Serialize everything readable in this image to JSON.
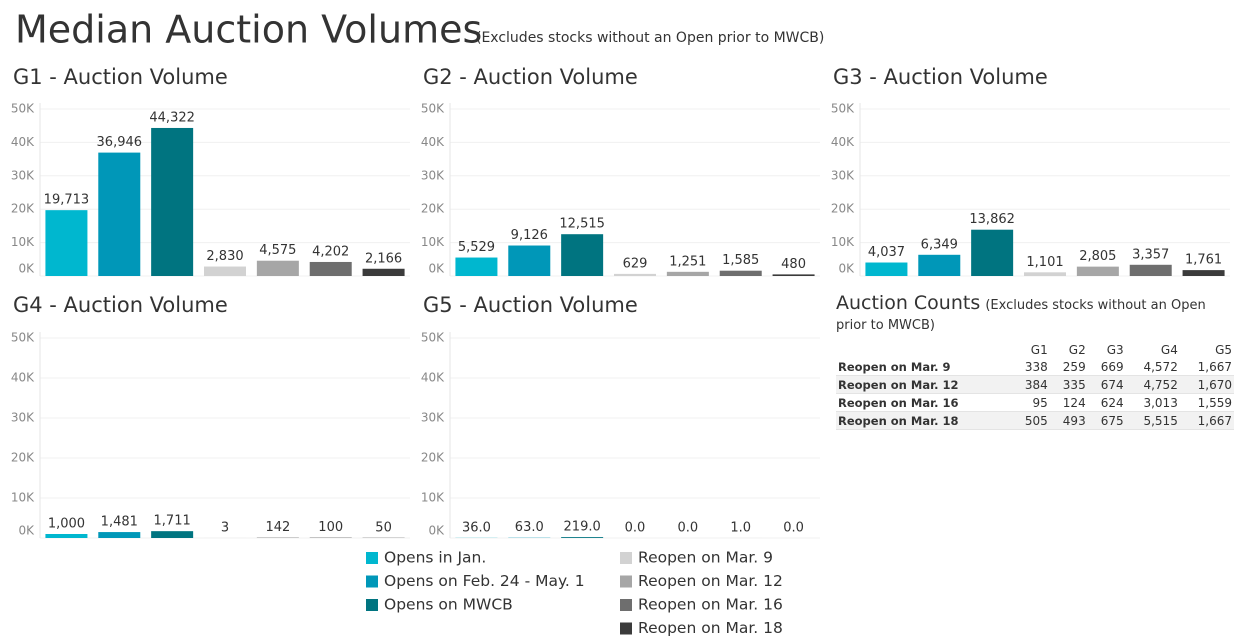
{
  "title": "Median Auction Volumes",
  "subtitle": "(Excludes stocks without an Open prior to MWCB)",
  "legend": {
    "items": [
      {
        "name": "Opens in Jan.",
        "color": "#00b7cf"
      },
      {
        "name": "Opens on Feb. 24 - May. 1",
        "color": "#0097b8"
      },
      {
        "name": "Opens on MWCB",
        "color": "#007480"
      },
      {
        "name": "Reopen on Mar. 9",
        "color": "#d2d2d2"
      },
      {
        "name": "Reopen on Mar. 12",
        "color": "#a6a6a6"
      },
      {
        "name": "Reopen on Mar. 16",
        "color": "#6e6e6e"
      },
      {
        "name": "Reopen on Mar. 18",
        "color": "#3b3b3b"
      }
    ]
  },
  "chart_data": [
    {
      "type": "bar",
      "title": "G1 - Auction Volume",
      "values": [
        19713,
        36946,
        44322,
        2830,
        4575,
        4202,
        2166
      ],
      "value_labels": [
        "19,713",
        "36,946",
        "44,322",
        "2,830",
        "4,575",
        "4,202",
        "2,166"
      ],
      "ylim": [
        0,
        50000
      ],
      "yticks": [
        {
          "value": 0,
          "label": "0K"
        },
        {
          "value": 10000,
          "label": "10K"
        },
        {
          "value": 20000,
          "label": "20K"
        },
        {
          "value": 30000,
          "label": "30K"
        },
        {
          "value": 40000,
          "label": "40K"
        },
        {
          "value": 50000,
          "label": "50K"
        }
      ]
    },
    {
      "type": "bar",
      "title": "G2 - Auction Volume",
      "values": [
        5529,
        9126,
        12515,
        629,
        1251,
        1585,
        480
      ],
      "value_labels": [
        "5,529",
        "9,126",
        "12,515",
        "629",
        "1,251",
        "1,585",
        "480"
      ],
      "ylim": [
        0,
        50000
      ],
      "yticks": [
        {
          "value": 0,
          "label": "0K"
        },
        {
          "value": 10000,
          "label": "10K"
        },
        {
          "value": 20000,
          "label": "20K"
        },
        {
          "value": 30000,
          "label": "30K"
        },
        {
          "value": 40000,
          "label": "40K"
        },
        {
          "value": 50000,
          "label": "50K"
        }
      ]
    },
    {
      "type": "bar",
      "title": "G3 - Auction Volume",
      "values": [
        4037,
        6349,
        13862,
        1101,
        2805,
        3357,
        1761
      ],
      "value_labels": [
        "4,037",
        "6,349",
        "13,862",
        "1,101",
        "2,805",
        "3,357",
        "1,761"
      ],
      "ylim": [
        0,
        50000
      ],
      "yticks": [
        {
          "value": 0,
          "label": "0K"
        },
        {
          "value": 10000,
          "label": "10K"
        },
        {
          "value": 20000,
          "label": "20K"
        },
        {
          "value": 30000,
          "label": "30K"
        },
        {
          "value": 40000,
          "label": "40K"
        },
        {
          "value": 50000,
          "label": "50K"
        }
      ]
    },
    {
      "type": "bar",
      "title": "G4 - Auction Volume",
      "values": [
        1000,
        1481,
        1711,
        3,
        142,
        100,
        50
      ],
      "value_labels": [
        "1,000",
        "1,481",
        "1,711",
        "3",
        "142",
        "100",
        "50"
      ],
      "ylim": [
        0,
        50000
      ],
      "yticks": [
        {
          "value": 0,
          "label": "0K"
        },
        {
          "value": 10000,
          "label": "10K"
        },
        {
          "value": 20000,
          "label": "20K"
        },
        {
          "value": 30000,
          "label": "30K"
        },
        {
          "value": 40000,
          "label": "40K"
        },
        {
          "value": 50000,
          "label": "50K"
        }
      ]
    },
    {
      "type": "bar",
      "title": "G5 - Auction Volume",
      "values": [
        36,
        63,
        219,
        0,
        0,
        1,
        0
      ],
      "value_labels": [
        "36.0",
        "63.0",
        "219.0",
        "0.0",
        "0.0",
        "1.0",
        "0.0"
      ],
      "ylim": [
        0,
        50000
      ],
      "yticks": [
        {
          "value": 0,
          "label": "0K"
        },
        {
          "value": 10000,
          "label": "10K"
        },
        {
          "value": 20000,
          "label": "20K"
        },
        {
          "value": 30000,
          "label": "30K"
        },
        {
          "value": 40000,
          "label": "40K"
        },
        {
          "value": 50000,
          "label": "50K"
        }
      ]
    }
  ],
  "table": {
    "title": "Auction Counts",
    "subtitle": "(Excludes stocks without an Open prior to MWCB)",
    "columns": [
      "G1",
      "G2",
      "G3",
      "G4",
      "G5"
    ],
    "rows": [
      {
        "label": "Reopen on Mar. 9",
        "cells": [
          "338",
          "259",
          "669",
          "4,572",
          "1,667"
        ]
      },
      {
        "label": "Reopen on Mar. 12",
        "cells": [
          "384",
          "335",
          "674",
          "4,752",
          "1,670"
        ]
      },
      {
        "label": "Reopen on Mar. 16",
        "cells": [
          "95",
          "124",
          "624",
          "3,013",
          "1,559"
        ]
      },
      {
        "label": "Reopen on Mar. 18",
        "cells": [
          "505",
          "493",
          "675",
          "5,515",
          "1,667"
        ]
      }
    ]
  }
}
